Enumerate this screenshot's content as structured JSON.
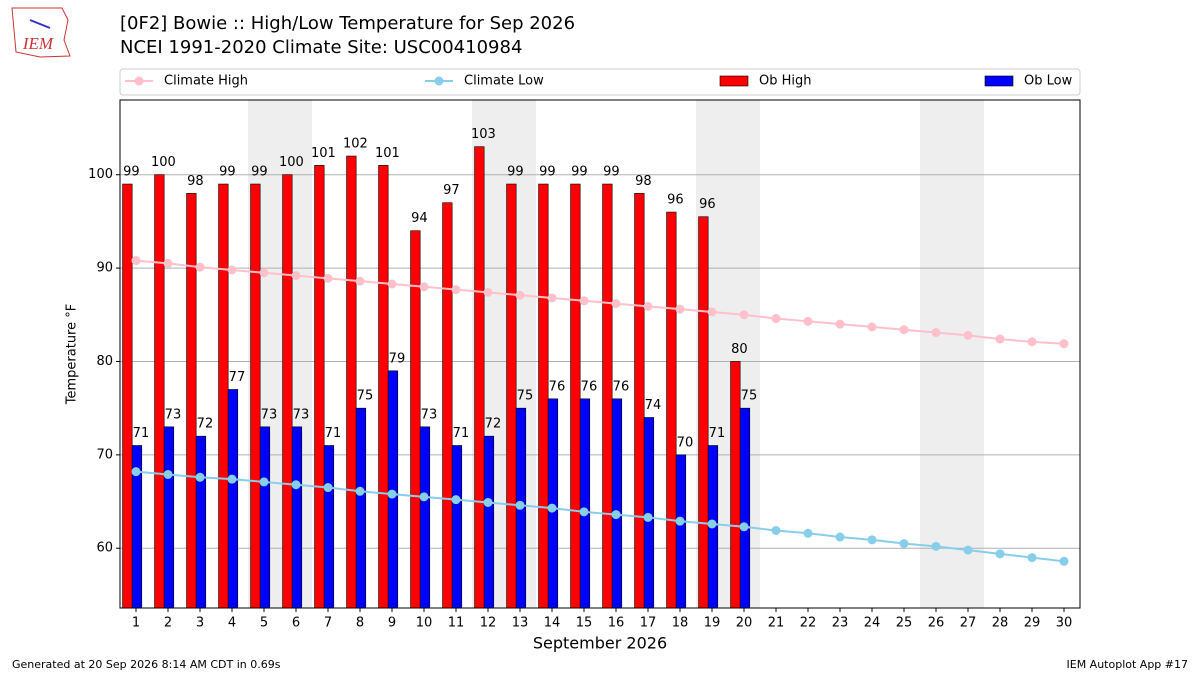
{
  "logo_text": "IEM",
  "footer_left": "Generated at 20 Sep 2026 8:14 AM CDT in 0.69s",
  "footer_right": "IEM Autoplot App #17",
  "chart_data": {
    "type": "bar",
    "title": "[0F2] Bowie :: High/Low Temperature for Sep 2026",
    "subtitle": "NCEI 1991-2020 Climate Site: USC00410984",
    "ylabel": "Temperature °F",
    "xlabel": "September 2026",
    "x": [
      1,
      2,
      3,
      4,
      5,
      6,
      7,
      8,
      9,
      10,
      11,
      12,
      13,
      14,
      15,
      16,
      17,
      18,
      19,
      20,
      21,
      22,
      23,
      24,
      25,
      26,
      27,
      28,
      29,
      30
    ],
    "xlim": [
      0.5,
      30.5
    ],
    "xticks": [
      1,
      2,
      3,
      4,
      5,
      6,
      7,
      8,
      9,
      10,
      11,
      12,
      13,
      14,
      15,
      16,
      17,
      18,
      19,
      20,
      21,
      22,
      23,
      24,
      25,
      26,
      27,
      28,
      29,
      30
    ],
    "ylim": [
      53.6,
      108
    ],
    "yticks": [
      60,
      70,
      80,
      90,
      100
    ],
    "grid": true,
    "highlight_ranges": [
      [
        4.5,
        6.5
      ],
      [
        11.5,
        13.5
      ],
      [
        18.5,
        20.5
      ],
      [
        25.5,
        27.5
      ]
    ],
    "highlight_color": "#eeeeee",
    "legend": "top",
    "series": [
      {
        "name": "Climate High",
        "type": "line",
        "color": "#ffc0cb",
        "values": [
          90.8,
          90.5,
          90.1,
          89.8,
          89.5,
          89.2,
          88.9,
          88.6,
          88.3,
          88.0,
          87.7,
          87.4,
          87.1,
          86.8,
          86.5,
          86.2,
          85.9,
          85.6,
          85.3,
          85.0,
          84.6,
          84.3,
          84.0,
          83.7,
          83.4,
          83.1,
          82.8,
          82.4,
          82.1,
          81.9
        ]
      },
      {
        "name": "Climate Low",
        "type": "line",
        "color": "#87ceeb",
        "values": [
          68.2,
          67.9,
          67.6,
          67.4,
          67.1,
          66.8,
          66.5,
          66.1,
          65.8,
          65.5,
          65.2,
          64.9,
          64.6,
          64.3,
          63.9,
          63.6,
          63.3,
          62.9,
          62.6,
          62.3,
          61.9,
          61.6,
          61.2,
          60.9,
          60.5,
          60.2,
          59.8,
          59.4,
          59.0,
          58.6
        ]
      },
      {
        "name": "Ob High",
        "type": "bar",
        "color": "#ff0000",
        "values": [
          99,
          100,
          98,
          99,
          99,
          100,
          101,
          102,
          101,
          94,
          97,
          103,
          99,
          99,
          99,
          99,
          98,
          96,
          95.5,
          80,
          null,
          null,
          null,
          null,
          null,
          null,
          null,
          null,
          null,
          null
        ],
        "value_labels": [
          "99",
          "100",
          "98",
          "99",
          "99",
          "100",
          "101",
          "102",
          "101",
          "94",
          "97",
          "103",
          "99",
          "99",
          "99",
          "99",
          "98",
          "96",
          "96",
          "80",
          null,
          null,
          null,
          null,
          null,
          null,
          null,
          null,
          null,
          null
        ]
      },
      {
        "name": "Ob Low",
        "type": "bar",
        "color": "#0000ff",
        "values": [
          71,
          73,
          72,
          77,
          73,
          73,
          71,
          75,
          79,
          73,
          71,
          72,
          75,
          76,
          76,
          76,
          74,
          70,
          71,
          75,
          null,
          null,
          null,
          null,
          null,
          null,
          null,
          null,
          null,
          null
        ]
      }
    ]
  }
}
